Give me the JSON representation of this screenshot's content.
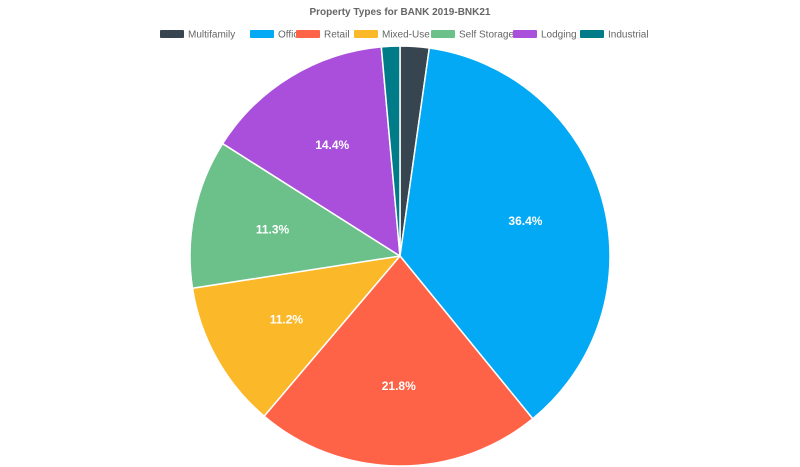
{
  "chart_data": {
    "type": "pie",
    "title": "Property Types for BANK 2019-BNK21",
    "legend_position": "top",
    "series": [
      {
        "name": "Multifamily",
        "value": 2.2,
        "color": "#36454f",
        "label": ""
      },
      {
        "name": "Office",
        "value": 36.4,
        "color": "#03a9f4",
        "label": "36.4%"
      },
      {
        "name": "Retail",
        "value": 21.8,
        "color": "#ff6347",
        "label": "21.8%"
      },
      {
        "name": "Mixed-Use",
        "value": 11.2,
        "color": "#fbb829",
        "label": "11.2%"
      },
      {
        "name": "Self Storage",
        "value": 11.3,
        "color": "#6cc18a",
        "label": "11.3%"
      },
      {
        "name": "Lodging",
        "value": 14.4,
        "color": "#a94fdc",
        "label": "14.4%"
      },
      {
        "name": "Industrial",
        "value": 1.4,
        "color": "#007c89",
        "label": ""
      }
    ]
  }
}
